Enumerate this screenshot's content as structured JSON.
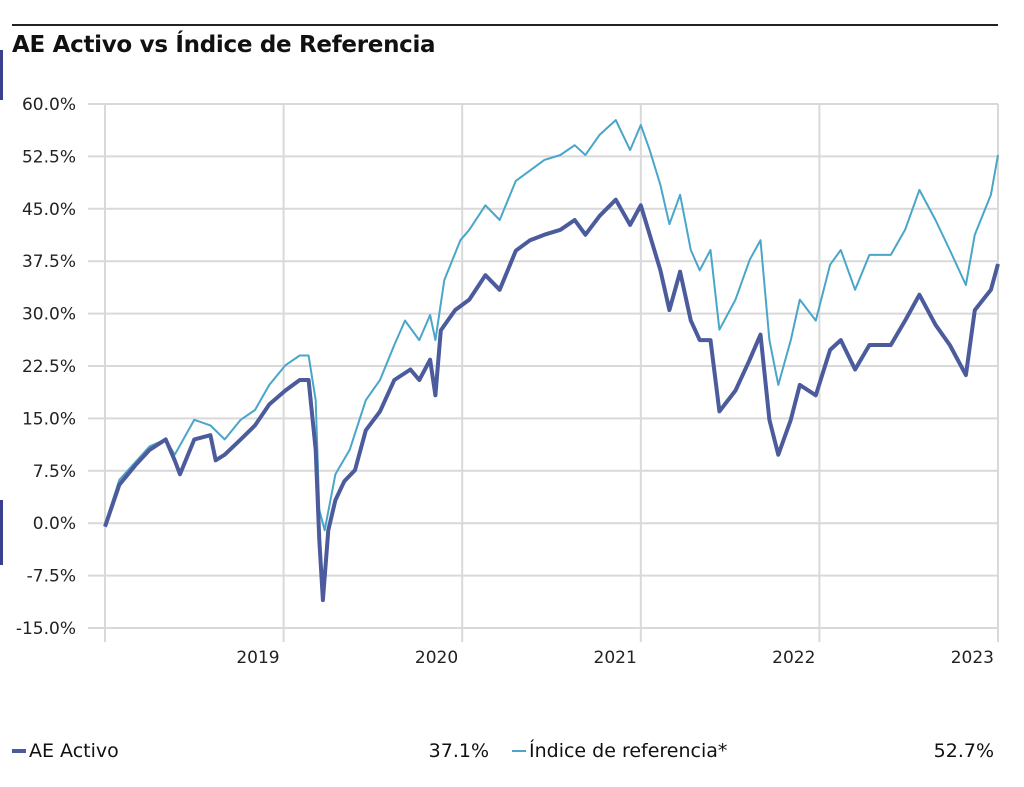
{
  "title": "AE Activo vs Índice de Referencia",
  "chart_data": {
    "type": "line",
    "title": "AE Activo vs Índice de Referencia",
    "xlabel": "",
    "ylabel": "",
    "xlim": [
      2018.0,
      2023.0
    ],
    "ylim": [
      -15,
      60
    ],
    "y_ticks": [
      "60.0%",
      "52.5%",
      "45.0%",
      "37.5%",
      "30.0%",
      "22.5%",
      "15.0%",
      "7.5%",
      "0.0%",
      "-7.5%",
      "-15.0%"
    ],
    "y_tick_values": [
      60,
      52.5,
      45,
      37.5,
      30,
      22.5,
      15,
      7.5,
      0,
      -7.5,
      -15
    ],
    "x_ticks": [
      "2019",
      "2020",
      "2021",
      "2022",
      "2023"
    ],
    "x_tick_values": [
      2019,
      2020,
      2021,
      2022,
      2023
    ],
    "grid": true,
    "legend_position": "bottom",
    "series": [
      {
        "name": "AE Activo",
        "final_label": "37.1%",
        "color": "#4b5b9c",
        "points": [
          [
            2018.0,
            -0.5
          ],
          [
            2018.08,
            5.5
          ],
          [
            2018.17,
            8.3
          ],
          [
            2018.25,
            10.5
          ],
          [
            2018.34,
            12
          ],
          [
            2018.39,
            9
          ],
          [
            2018.42,
            7
          ],
          [
            2018.5,
            12
          ],
          [
            2018.59,
            12.6
          ],
          [
            2018.62,
            9
          ],
          [
            2018.67,
            9.8
          ],
          [
            2018.76,
            12
          ],
          [
            2018.84,
            14
          ],
          [
            2018.92,
            17
          ],
          [
            2019.01,
            19
          ],
          [
            2019.09,
            20.5
          ],
          [
            2019.14,
            20.5
          ],
          [
            2019.18,
            10.5
          ],
          [
            2019.2,
            -2.4
          ],
          [
            2019.22,
            -11
          ],
          [
            2019.25,
            -1
          ],
          [
            2019.29,
            3.3
          ],
          [
            2019.34,
            6
          ],
          [
            2019.4,
            7.6
          ],
          [
            2019.46,
            13.3
          ],
          [
            2019.54,
            16
          ],
          [
            2019.62,
            20.5
          ],
          [
            2019.71,
            22
          ],
          [
            2019.76,
            20.5
          ],
          [
            2019.82,
            23.4
          ],
          [
            2019.85,
            18.3
          ],
          [
            2019.88,
            27.6
          ],
          [
            2019.96,
            30.5
          ],
          [
            2020.04,
            32
          ],
          [
            2020.13,
            35.5
          ],
          [
            2020.21,
            33.4
          ],
          [
            2020.3,
            39
          ],
          [
            2020.38,
            40.5
          ],
          [
            2020.46,
            41.3
          ],
          [
            2020.55,
            42
          ],
          [
            2020.63,
            43.4
          ],
          [
            2020.69,
            41.3
          ],
          [
            2020.77,
            44
          ],
          [
            2020.86,
            46.3
          ],
          [
            2020.94,
            42.7
          ],
          [
            2021.0,
            45.5
          ],
          [
            2021.05,
            41.3
          ],
          [
            2021.11,
            36.2
          ],
          [
            2021.16,
            30.5
          ],
          [
            2021.22,
            36
          ],
          [
            2021.28,
            29
          ],
          [
            2021.33,
            26.2
          ],
          [
            2021.39,
            26.2
          ],
          [
            2021.44,
            16
          ],
          [
            2021.53,
            19
          ],
          [
            2021.61,
            23.4
          ],
          [
            2021.67,
            27
          ],
          [
            2021.72,
            14.8
          ],
          [
            2021.77,
            9.8
          ],
          [
            2021.84,
            14.8
          ],
          [
            2021.89,
            19.8
          ],
          [
            2021.98,
            18.3
          ],
          [
            2022.06,
            24.8
          ],
          [
            2022.12,
            26.2
          ],
          [
            2022.2,
            22
          ],
          [
            2022.28,
            25.5
          ],
          [
            2022.4,
            25.5
          ],
          [
            2022.48,
            29
          ],
          [
            2022.56,
            32.7
          ],
          [
            2022.65,
            28.4
          ],
          [
            2022.73,
            25.5
          ],
          [
            2022.82,
            21.2
          ],
          [
            2022.87,
            30.5
          ],
          [
            2022.96,
            33.4
          ],
          [
            2023.0,
            37.1
          ]
        ]
      },
      {
        "name": "Índice de referencia*",
        "final_label": "52.7%",
        "color": "#4aa6c9",
        "points": [
          [
            2018.0,
            -0.2
          ],
          [
            2018.08,
            6.2
          ],
          [
            2018.25,
            11
          ],
          [
            2018.34,
            12
          ],
          [
            2018.39,
            9.8
          ],
          [
            2018.5,
            14.8
          ],
          [
            2018.59,
            14
          ],
          [
            2018.67,
            12
          ],
          [
            2018.76,
            14.8
          ],
          [
            2018.84,
            16.2
          ],
          [
            2018.92,
            19.8
          ],
          [
            2019.01,
            22.6
          ],
          [
            2019.09,
            24
          ],
          [
            2019.14,
            24
          ],
          [
            2019.18,
            17.6
          ],
          [
            2019.2,
            1.9
          ],
          [
            2019.23,
            -1
          ],
          [
            2019.29,
            7
          ],
          [
            2019.37,
            10.5
          ],
          [
            2019.46,
            17.6
          ],
          [
            2019.54,
            20.5
          ],
          [
            2019.62,
            25.5
          ],
          [
            2019.68,
            29
          ],
          [
            2019.76,
            26.2
          ],
          [
            2019.82,
            29.8
          ],
          [
            2019.85,
            26.2
          ],
          [
            2019.9,
            34.8
          ],
          [
            2019.99,
            40.5
          ],
          [
            2020.04,
            42
          ],
          [
            2020.13,
            45.5
          ],
          [
            2020.21,
            43.4
          ],
          [
            2020.3,
            49
          ],
          [
            2020.38,
            50.5
          ],
          [
            2020.46,
            52
          ],
          [
            2020.55,
            52.7
          ],
          [
            2020.63,
            54.1
          ],
          [
            2020.69,
            52.7
          ],
          [
            2020.77,
            55.6
          ],
          [
            2020.86,
            57.7
          ],
          [
            2020.94,
            53.4
          ],
          [
            2021.0,
            57
          ],
          [
            2021.05,
            53.4
          ],
          [
            2021.11,
            48.4
          ],
          [
            2021.16,
            42.8
          ],
          [
            2021.22,
            47
          ],
          [
            2021.28,
            39.1
          ],
          [
            2021.33,
            36.2
          ],
          [
            2021.39,
            39.1
          ],
          [
            2021.44,
            27.7
          ],
          [
            2021.53,
            32
          ],
          [
            2021.61,
            37.7
          ],
          [
            2021.67,
            40.5
          ],
          [
            2021.72,
            26.2
          ],
          [
            2021.77,
            19.8
          ],
          [
            2021.84,
            26.2
          ],
          [
            2021.89,
            32
          ],
          [
            2021.98,
            29
          ],
          [
            2022.06,
            37
          ],
          [
            2022.12,
            39.1
          ],
          [
            2022.2,
            33.4
          ],
          [
            2022.28,
            38.4
          ],
          [
            2022.4,
            38.4
          ],
          [
            2022.48,
            42
          ],
          [
            2022.56,
            47.7
          ],
          [
            2022.65,
            43.4
          ],
          [
            2022.73,
            39.1
          ],
          [
            2022.82,
            34.1
          ],
          [
            2022.87,
            41.3
          ],
          [
            2022.96,
            47
          ],
          [
            2023.0,
            52.7
          ]
        ]
      }
    ]
  }
}
